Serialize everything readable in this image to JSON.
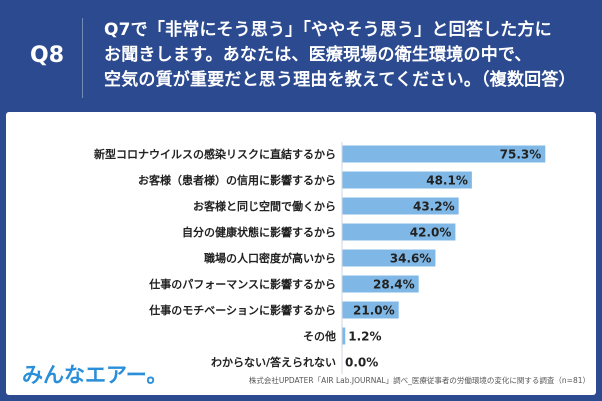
{
  "header": {
    "question_id": "Q8",
    "question_lines": [
      "Q7で「非常にそう思う」「ややそう思う」と回答した方に",
      "お聞きします。あなたは、医療現場の衛生環境の中で、",
      "空気の質が重要だと思う理由を教えてください。（複数回答）"
    ]
  },
  "chart_data": {
    "type": "bar",
    "orientation": "horizontal",
    "categories": [
      "新型コロナウイルスの感染リスクに直結するから",
      "お客様（患者様）の信用に影響するから",
      "お客様と同じ空間で働くから",
      "自分の健康状態に影響するから",
      "職場の人口密度が高いから",
      "仕事のパフォーマンスに影響するから",
      "仕事のモチベーションに影響するから",
      "その他",
      "わからない/答えられない"
    ],
    "values": [
      75.3,
      48.1,
      43.2,
      42.0,
      34.6,
      28.4,
      21.0,
      1.2,
      0.0
    ],
    "value_labels": [
      "75.3%",
      "48.1%",
      "43.2%",
      "42.0%",
      "34.6%",
      "28.4%",
      "21.0%",
      "1.2%",
      "0.0%"
    ],
    "xlim": [
      0,
      100
    ],
    "bar_color": "#7fb8e6",
    "grid": false
  },
  "footer": {
    "logo": "みんなエアー。",
    "source": "株式会社UPDATER「AIR Lab.JOURNAL」調べ_医療従事者の労働環境の変化に関する調査（n=81）"
  }
}
